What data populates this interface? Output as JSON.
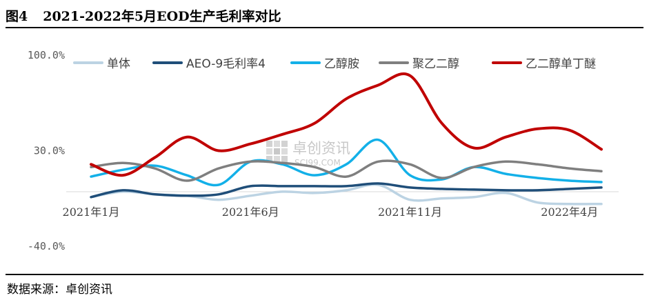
{
  "figure": {
    "number": "图4",
    "title": "2021-2022年5月EOD生产毛利率对比",
    "source": "数据来源：卓创资讯"
  },
  "watermark": {
    "name": "卓创资讯",
    "site": "SCI99.COM"
  },
  "chart_data": {
    "type": "line",
    "ylim": [
      -40,
      100
    ],
    "yticks": [
      {
        "value": 100,
        "label": "100.0%"
      },
      {
        "value": 30,
        "label": "30.0%"
      },
      {
        "value": -40,
        "label": "-40.0%"
      }
    ],
    "x_range": [
      0,
      16
    ],
    "x_labels": [
      {
        "x": 0,
        "label": "2021年1月"
      },
      {
        "x": 5,
        "label": "2021年6月"
      },
      {
        "x": 10,
        "label": "2021年11月"
      },
      {
        "x": 15,
        "label": "2022年4月"
      }
    ],
    "legend_position": "top",
    "grid": false,
    "series": [
      {
        "name": "单体",
        "color": "#bcd3e3",
        "points": [
          [
            0,
            -4
          ],
          [
            1,
            0
          ],
          [
            2,
            -2
          ],
          [
            3,
            -3
          ],
          [
            4,
            -6
          ],
          [
            5,
            -3
          ],
          [
            6,
            0
          ],
          [
            7,
            -1
          ],
          [
            8,
            1
          ],
          [
            9,
            5
          ],
          [
            10,
            -6
          ],
          [
            11,
            -5
          ],
          [
            12,
            -4
          ],
          [
            13,
            -1
          ],
          [
            14,
            -8
          ],
          [
            15,
            -9
          ],
          [
            16,
            -9
          ]
        ]
      },
      {
        "name": "AEO-9毛利率4",
        "color": "#1f4e79",
        "points": [
          [
            0,
            -4
          ],
          [
            1,
            1
          ],
          [
            2,
            -2
          ],
          [
            3,
            -3
          ],
          [
            4,
            -2
          ],
          [
            5,
            4
          ],
          [
            6,
            4
          ],
          [
            7,
            4
          ],
          [
            8,
            4
          ],
          [
            9,
            6
          ],
          [
            10,
            3
          ],
          [
            11,
            2
          ],
          [
            12,
            1.5
          ],
          [
            13,
            1
          ],
          [
            14,
            1
          ],
          [
            15,
            2
          ],
          [
            16,
            3
          ]
        ]
      },
      {
        "name": "乙醇胺",
        "color": "#13b0e8",
        "points": [
          [
            0,
            11
          ],
          [
            1,
            16
          ],
          [
            2,
            19
          ],
          [
            3,
            12
          ],
          [
            4,
            5
          ],
          [
            5,
            22
          ],
          [
            6,
            20
          ],
          [
            7,
            12
          ],
          [
            8,
            20
          ],
          [
            9,
            38
          ],
          [
            10,
            12
          ],
          [
            11,
            9
          ],
          [
            12,
            18
          ],
          [
            13,
            13
          ],
          [
            14,
            10
          ],
          [
            15,
            8
          ],
          [
            16,
            7
          ]
        ]
      },
      {
        "name": "聚乙二醇",
        "color": "#7f7f7f",
        "points": [
          [
            0,
            18
          ],
          [
            1,
            21
          ],
          [
            2,
            17
          ],
          [
            3,
            8
          ],
          [
            4,
            17
          ],
          [
            5,
            22
          ],
          [
            6,
            21
          ],
          [
            7,
            18
          ],
          [
            8,
            11
          ],
          [
            9,
            22
          ],
          [
            10,
            20
          ],
          [
            11,
            10
          ],
          [
            12,
            18
          ],
          [
            13,
            22
          ],
          [
            14,
            20
          ],
          [
            15,
            17
          ],
          [
            16,
            15
          ]
        ]
      },
      {
        "name": "乙二醇单丁醚",
        "color": "#c00000",
        "points": [
          [
            0,
            20
          ],
          [
            1,
            12
          ],
          [
            2,
            25
          ],
          [
            3,
            40
          ],
          [
            4,
            30
          ],
          [
            5,
            35
          ],
          [
            6,
            42
          ],
          [
            7,
            50
          ],
          [
            8,
            68
          ],
          [
            9,
            78
          ],
          [
            10,
            85
          ],
          [
            11,
            50
          ],
          [
            12,
            32
          ],
          [
            13,
            40
          ],
          [
            14,
            46
          ],
          [
            15,
            45
          ],
          [
            16,
            31
          ]
        ]
      }
    ]
  }
}
